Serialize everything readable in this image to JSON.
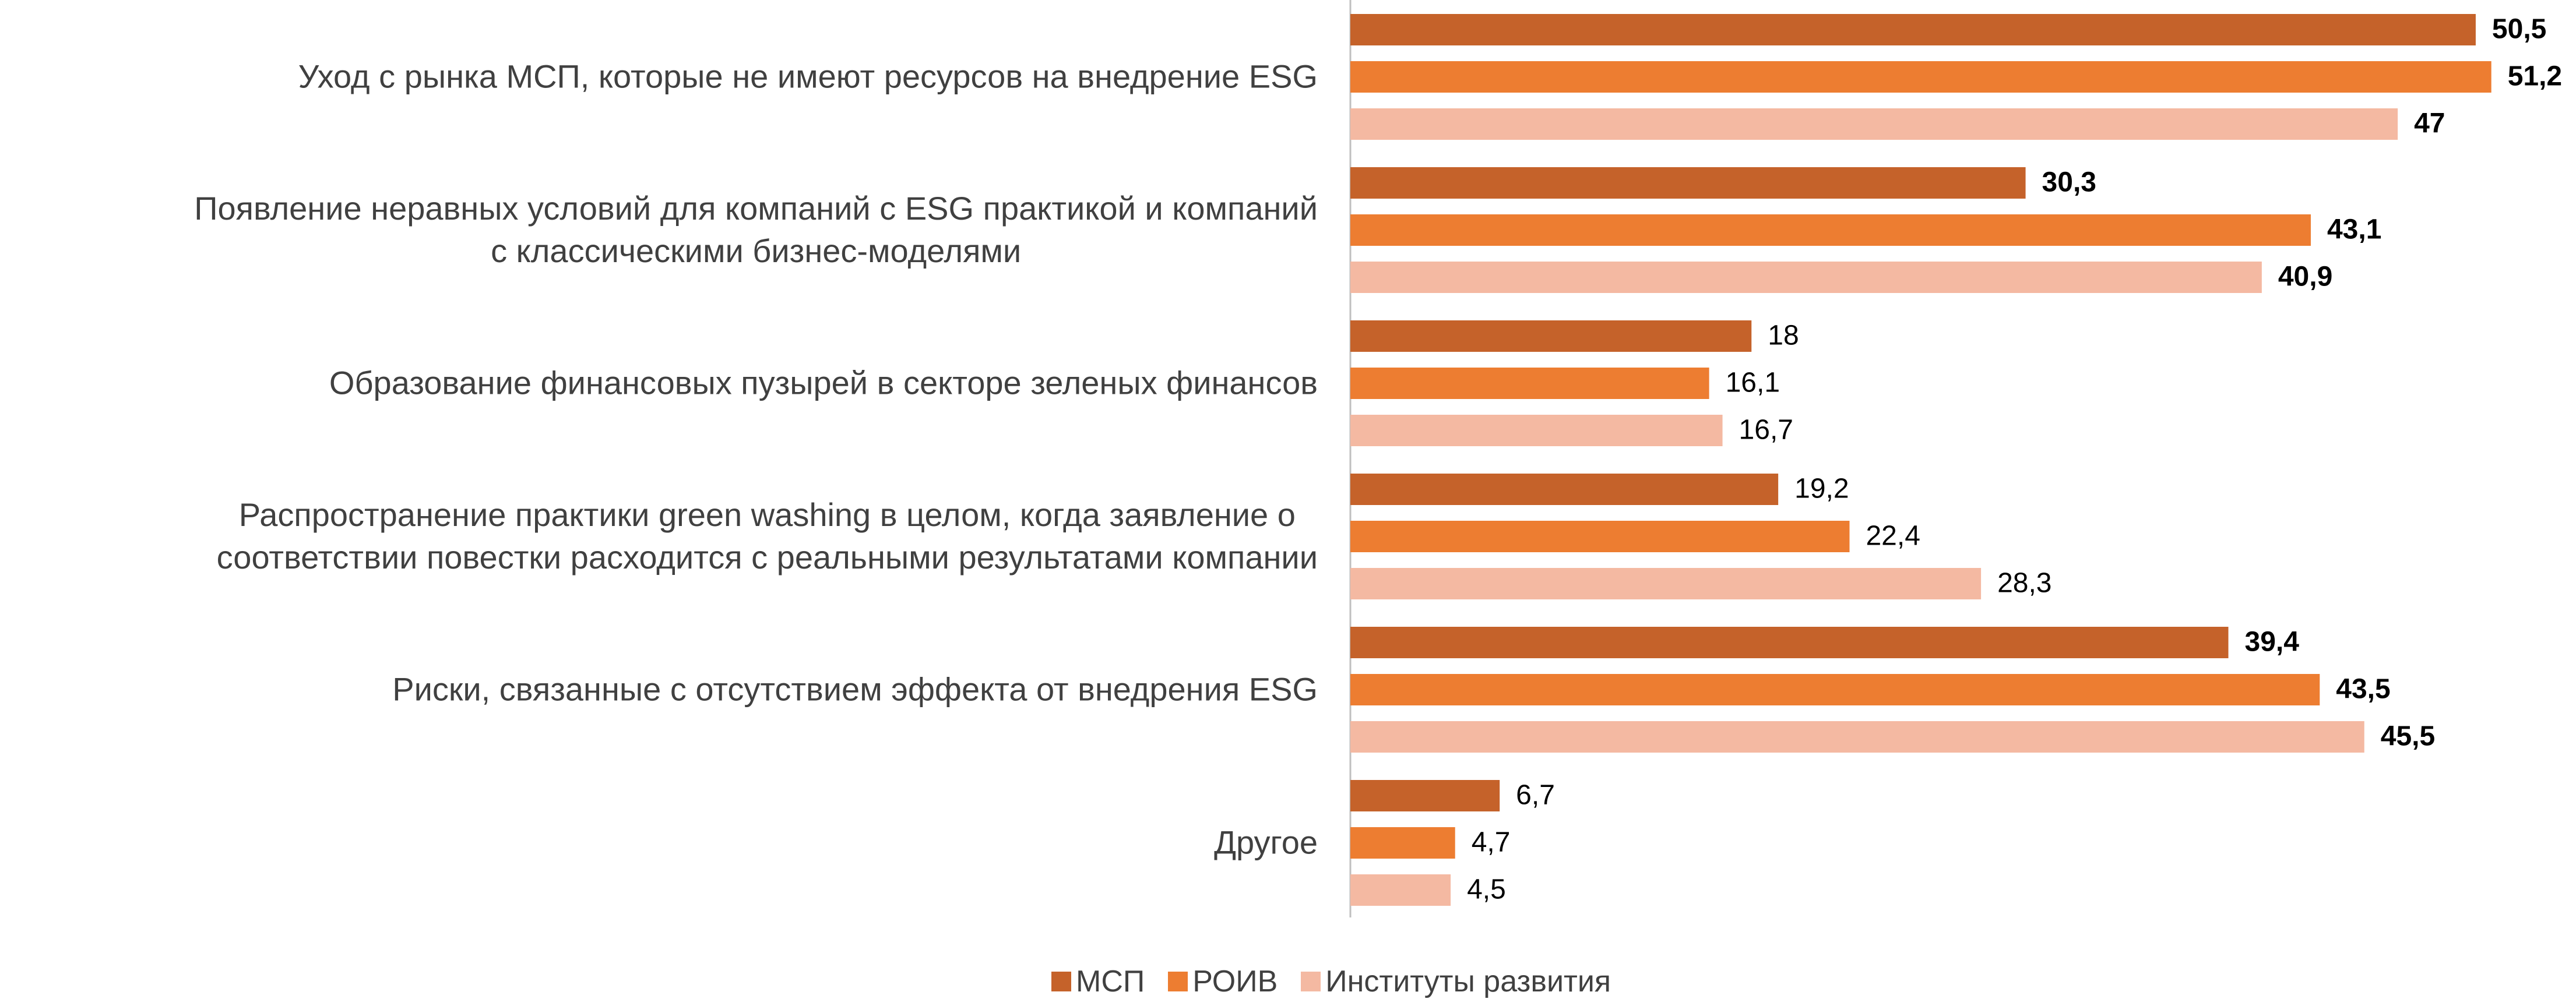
{
  "chart_data": {
    "type": "hbar",
    "categories": [
      "Уход с рынка МСП, которые не имеют ресурсов на внедрение ESG",
      "Появление неравных условий для компаний с ESG практикой и компаний\nс классическими бизнес-моделями",
      "Образование финансовых пузырей в секторе зеленых финансов",
      "Распространение практики green washing в целом, когда заявление о\nсоответствии повестки расходится с реальными результатами компании",
      "Риски, связанные с отсутствием эффекта от внедрения ESG",
      "Другое"
    ],
    "series": [
      {
        "name": "МСП",
        "color": "#c5622a",
        "values": [
          50.5,
          30.3,
          18,
          19.2,
          39.4,
          6.7
        ],
        "value_labels": [
          "50,5",
          "30,3",
          "18",
          "19,2",
          "39,4",
          "6,7"
        ]
      },
      {
        "name": "РОИВ",
        "color": "#ed7d31",
        "values": [
          51.2,
          43.1,
          16.1,
          22.4,
          43.5,
          4.7
        ],
        "value_labels": [
          "51,2",
          "43,1",
          "16,1",
          "22,4",
          "43,5",
          "4,7"
        ]
      },
      {
        "name": "Институты развития",
        "color": "#f4b9a2",
        "values": [
          47,
          40.9,
          16.7,
          28.3,
          45.5,
          4.5
        ],
        "value_labels": [
          "47",
          "40,9",
          "16,7",
          "28,3",
          "45,5",
          "4,5"
        ]
      }
    ],
    "xlim": [
      0,
      55
    ],
    "legend": "bottom"
  }
}
